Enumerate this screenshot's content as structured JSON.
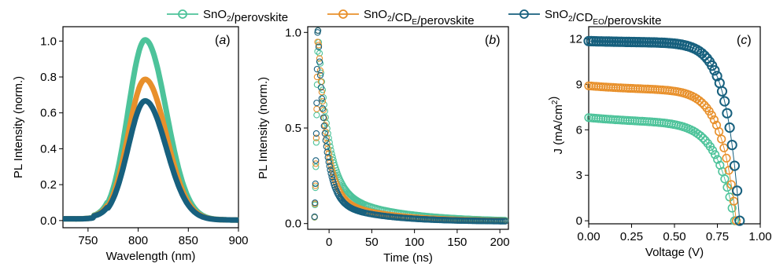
{
  "legend": {
    "entries": [
      {
        "name": "SnO₂/perovskite",
        "color": "#4dc39a"
      },
      {
        "name": "SnO₂/CD_E/perovskite",
        "color": "#e8902b"
      },
      {
        "name": "SnO₂/CD_EO/perovskite",
        "color": "#17607e"
      }
    ]
  },
  "chart_data": [
    {
      "type": "line",
      "panel_label": "a",
      "xlabel": "Wavelength (nm)",
      "ylabel": "PL Intensity (norm.)",
      "xlim": [
        725,
        900
      ],
      "ylim": [
        -0.04,
        1.08
      ],
      "xticks": [
        750,
        800,
        850,
        900
      ],
      "yticks": [
        0.0,
        0.2,
        0.4,
        0.6,
        0.8,
        1.0
      ],
      "ytick_labels": [
        "0.0",
        "0.2",
        "0.4",
        "0.6",
        "0.8",
        "1.0"
      ],
      "series": [
        {
          "name": "SnO₂/perovskite",
          "color": "#4dc39a",
          "peak": 1.0,
          "center": 807
        },
        {
          "name": "SnO₂/CD_E/perovskite",
          "color": "#e8902b",
          "peak": 0.78,
          "center": 807
        },
        {
          "name": "SnO₂/CD_EO/perovskite",
          "color": "#17607e",
          "peak": 0.66,
          "center": 807
        }
      ],
      "grid": false
    },
    {
      "type": "scatter",
      "panel_label": "b",
      "xlabel": "Time (ns)",
      "ylabel": "PL Intensity (norm.)",
      "xlim": [
        -25,
        210
      ],
      "ylim": [
        -0.03,
        1.03
      ],
      "xticks": [
        0,
        50,
        100,
        150,
        200
      ],
      "yticks": [
        0.0,
        0.5,
        1.0
      ],
      "ytick_labels": [
        "0.0",
        "0.5",
        "1.0"
      ],
      "series": [
        {
          "name": "SnO₂/perovskite",
          "color": "#4dc39a",
          "tau_fast": 12,
          "tau_slow": 70,
          "frac_fast": 0.82
        },
        {
          "name": "SnO₂/CD_E/perovskite",
          "color": "#e8902b",
          "tau_fast": 10,
          "tau_slow": 60,
          "frac_fast": 0.86
        },
        {
          "name": "SnO₂/CD_EO/perovskite",
          "color": "#17607e",
          "tau_fast": 9,
          "tau_slow": 55,
          "frac_fast": 0.88
        }
      ],
      "grid": false
    },
    {
      "type": "scatter",
      "panel_label": "c",
      "xlabel": "Voltage (V)",
      "ylabel": "J (mA/cm²)",
      "xlim": [
        0.0,
        1.0
      ],
      "ylim": [
        -0.2,
        12.8
      ],
      "xticks": [
        0.0,
        0.25,
        0.5,
        0.75,
        1.0
      ],
      "xtick_labels": [
        "0.00",
        "0.25",
        "0.50",
        "0.75",
        "1.00"
      ],
      "yticks": [
        0,
        3,
        6,
        9,
        12
      ],
      "ytick_labels": [
        "0",
        "3",
        "6",
        "9",
        "12"
      ],
      "series": [
        {
          "name": "SnO₂/perovskite",
          "color": "#4dc39a",
          "jsc": 6.8,
          "voc": 0.85
        },
        {
          "name": "SnO₂/CD_E/perovskite",
          "color": "#e8902b",
          "jsc": 8.9,
          "voc": 0.86
        },
        {
          "name": "SnO₂/CD_EO/perovskite",
          "color": "#17607e",
          "jsc": 11.85,
          "voc": 0.88
        }
      ],
      "grid": false
    }
  ]
}
